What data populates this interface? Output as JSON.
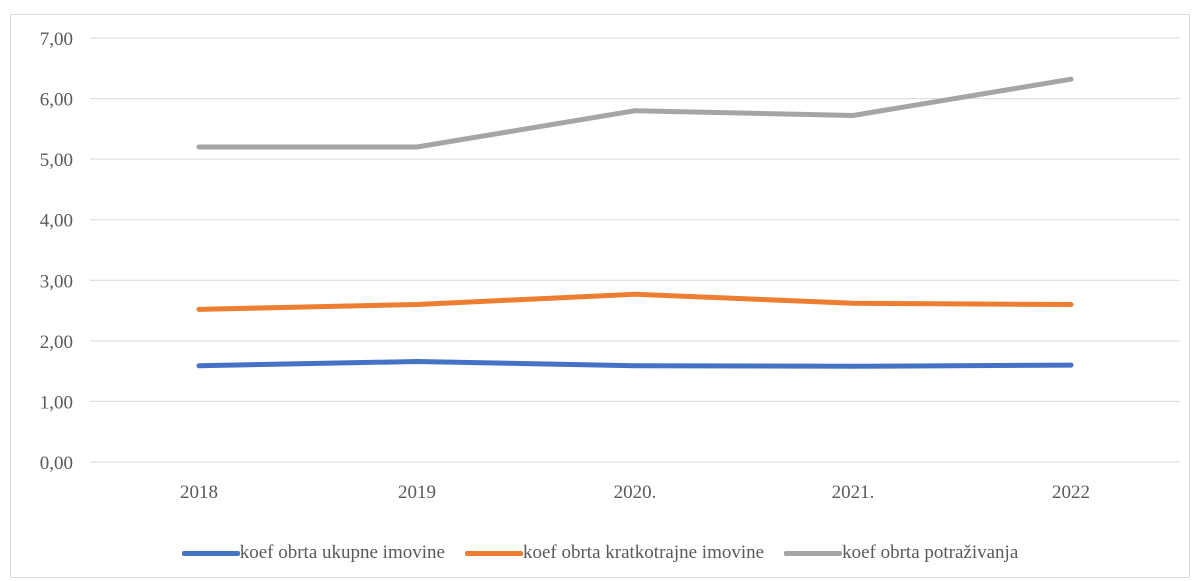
{
  "chart_data": {
    "type": "line",
    "title": "",
    "xlabel": "",
    "ylabel": "",
    "categories": [
      "2018",
      "2019",
      "2020.",
      "2021.",
      "2022"
    ],
    "ylim": [
      0,
      7
    ],
    "yticks": [
      "0,00",
      "1,00",
      "2,00",
      "3,00",
      "4,00",
      "5,00",
      "6,00",
      "7,00"
    ],
    "grid": true,
    "legend_position": "bottom",
    "series": [
      {
        "name": "koef obrta ukupne imovine",
        "color": "#4472c4",
        "values": [
          1.59,
          1.66,
          1.59,
          1.58,
          1.6
        ]
      },
      {
        "name": "koef obrta kratkotrajne imovine",
        "color": "#ed7d31",
        "values": [
          2.52,
          2.6,
          2.77,
          2.62,
          2.6
        ]
      },
      {
        "name": "koef obrta potraživanja",
        "color": "#a5a5a5",
        "values": [
          5.2,
          5.2,
          5.8,
          5.72,
          6.32
        ]
      }
    ]
  }
}
